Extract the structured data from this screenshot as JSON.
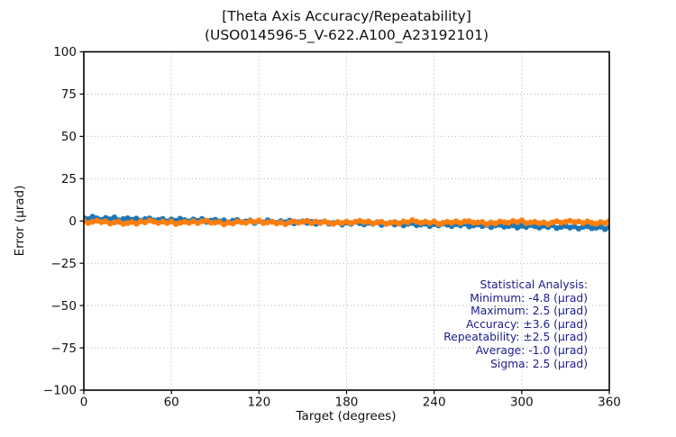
{
  "title": {
    "line1": "[Theta Axis Accuracy/Repeatability]",
    "line2": "(USO014596-5_V-622.A100_A23192101)"
  },
  "axes": {
    "xlabel": "Target (degrees)",
    "ylabel": "Error (µrad)"
  },
  "stats": {
    "lines": [
      "Statistical Analysis:",
      "Minimum: -4.8 (µrad)",
      "Maximum: 2.5 (µrad)",
      "Accuracy: ±3.6 (µrad)",
      "Repeatability: ±2.5 (µrad)",
      "Average: -1.0 (µrad)",
      "Sigma: 2.5 (µrad)"
    ],
    "text_color": "#1c1c8c"
  },
  "chart_data": {
    "type": "scatter",
    "title": "[Theta Axis Accuracy/Repeatability] (USO014596-5_V-622.A100_A23192101)",
    "xlabel": "Target (degrees)",
    "ylabel": "Error (µrad)",
    "xlim": [
      0,
      360
    ],
    "ylim": [
      -100,
      100
    ],
    "xticks": [
      0,
      60,
      120,
      180,
      240,
      300,
      360
    ],
    "yticks": [
      -100,
      -75,
      -50,
      -25,
      0,
      25,
      50,
      75,
      100
    ],
    "grid": "dotted",
    "legend": "none",
    "marker_radius_px": 3.3,
    "statistics": {
      "minimum_urad": -4.8,
      "maximum_urad": 2.5,
      "accuracy_urad": 3.6,
      "repeatability_urad": 2.5,
      "average_urad": -1.0,
      "sigma_urad": 2.5
    },
    "x": [
      0,
      3,
      6,
      9,
      12,
      15,
      18,
      21,
      24,
      27,
      30,
      33,
      36,
      39,
      42,
      45,
      48,
      51,
      54,
      57,
      60,
      63,
      66,
      69,
      72,
      75,
      78,
      81,
      84,
      87,
      90,
      93,
      96,
      99,
      102,
      105,
      108,
      111,
      114,
      117,
      120,
      123,
      126,
      129,
      132,
      135,
      138,
      141,
      144,
      147,
      150,
      153,
      156,
      159,
      162,
      165,
      168,
      171,
      174,
      177,
      180,
      183,
      186,
      189,
      192,
      195,
      198,
      201,
      204,
      207,
      210,
      213,
      216,
      219,
      222,
      225,
      228,
      231,
      234,
      237,
      240,
      243,
      246,
      249,
      252,
      255,
      258,
      261,
      264,
      267,
      270,
      273,
      276,
      279,
      282,
      285,
      288,
      291,
      294,
      297,
      300,
      303,
      306,
      309,
      312,
      315,
      318,
      321,
      324,
      327,
      330,
      333,
      336,
      339,
      342,
      345,
      348,
      351,
      354,
      357,
      360
    ],
    "series": [
      {
        "name": "series-1",
        "color": "#1f77b4",
        "values": [
          1.8,
          1.1,
          2.5,
          1.5,
          0.7,
          1.8,
          1.0,
          2.1,
          0.4,
          1.1,
          1.6,
          0.7,
          1.4,
          0.1,
          1.1,
          1.5,
          0.3,
          0.6,
          1.2,
          -0.3,
          0.9,
          0.1,
          1.3,
          0.5,
          -0.2,
          0.9,
          0.1,
          1.2,
          -0.5,
          0.2,
          0.7,
          -0.2,
          0.4,
          -0.8,
          0.1,
          0.6,
          -0.7,
          -0.3,
          0.3,
          -1.2,
          0.0,
          -0.8,
          0.4,
          -0.4,
          -1.1,
          -0.1,
          -0.8,
          0.2,
          -1.4,
          -0.7,
          -0.2,
          -1.1,
          -0.5,
          -1.7,
          -0.8,
          -0.3,
          -1.6,
          -1.2,
          -0.7,
          -2.1,
          -0.9,
          -1.7,
          -0.5,
          -1.3,
          -2.0,
          -1.0,
          -1.7,
          -0.7,
          -2.3,
          -1.7,
          -1.1,
          -2.1,
          -1.4,
          -2.6,
          -1.7,
          -1.2,
          -2.5,
          -2.1,
          -1.6,
          -3.0,
          -1.9,
          -2.6,
          -1.5,
          -2.2,
          -3.0,
          -1.9,
          -2.6,
          -1.6,
          -3.2,
          -2.6,
          -2.0,
          -3.0,
          -2.3,
          -3.6,
          -2.6,
          -2.2,
          -3.4,
          -3.0,
          -2.5,
          -3.9,
          -2.8,
          -3.5,
          -2.4,
          -3.1,
          -3.9,
          -2.8,
          -3.6,
          -2.5,
          -4.2,
          -3.5,
          -2.9,
          -3.9,
          -3.2,
          -4.5,
          -3.5,
          -3.1,
          -4.3,
          -4.0,
          -3.4,
          -4.8,
          -3.7
        ]
      },
      {
        "name": "series-2",
        "color": "#ff7f0e",
        "values": [
          0.0,
          -1.2,
          -0.5,
          0.1,
          -0.7,
          -0.2,
          -1.5,
          -0.8,
          -0.5,
          -1.7,
          -1.2,
          -0.6,
          -1.6,
          -0.3,
          -0.8,
          0.3,
          -0.4,
          -1.1,
          -0.4,
          -1.2,
          -0.3,
          -1.8,
          -1.1,
          -0.5,
          -1.1,
          -0.2,
          -1.2,
          -0.2,
          0.2,
          -1.0,
          -0.9,
          -0.6,
          -2.0,
          -0.9,
          -1.5,
          -0.3,
          -0.7,
          -1.1,
          0.0,
          -0.6,
          0.4,
          -1.2,
          -0.8,
          -0.5,
          -1.4,
          -0.8,
          -1.9,
          -0.8,
          -0.2,
          -1.0,
          -0.5,
          0.1,
          -1.3,
          -0.3,
          -1.2,
          -0.3,
          -1.1,
          -1.7,
          -0.7,
          -1.2,
          -0.4,
          -1.2,
          -0.5,
          0.1,
          -0.7,
          -0.2,
          -1.5,
          -0.8,
          -0.5,
          -1.7,
          -1.2,
          -0.6,
          -1.6,
          -0.3,
          -0.8,
          0.5,
          -0.4,
          -1.1,
          -0.4,
          -1.2,
          -0.3,
          -1.8,
          -1.1,
          -0.5,
          -1.1,
          -0.2,
          -1.2,
          -0.2,
          -0.1,
          -1.0,
          -0.9,
          -0.6,
          -2.0,
          -0.9,
          -1.5,
          -0.3,
          -0.7,
          -1.1,
          0.0,
          -0.6,
          0.4,
          -1.2,
          -0.9,
          -0.5,
          -1.4,
          -0.8,
          -1.9,
          -0.8,
          -0.2,
          -1.0,
          -0.5,
          0.1,
          -0.6,
          -0.3,
          -1.2,
          -0.3,
          -1.1,
          -1.7,
          -0.7,
          -1.2,
          0.0
        ]
      }
    ]
  }
}
